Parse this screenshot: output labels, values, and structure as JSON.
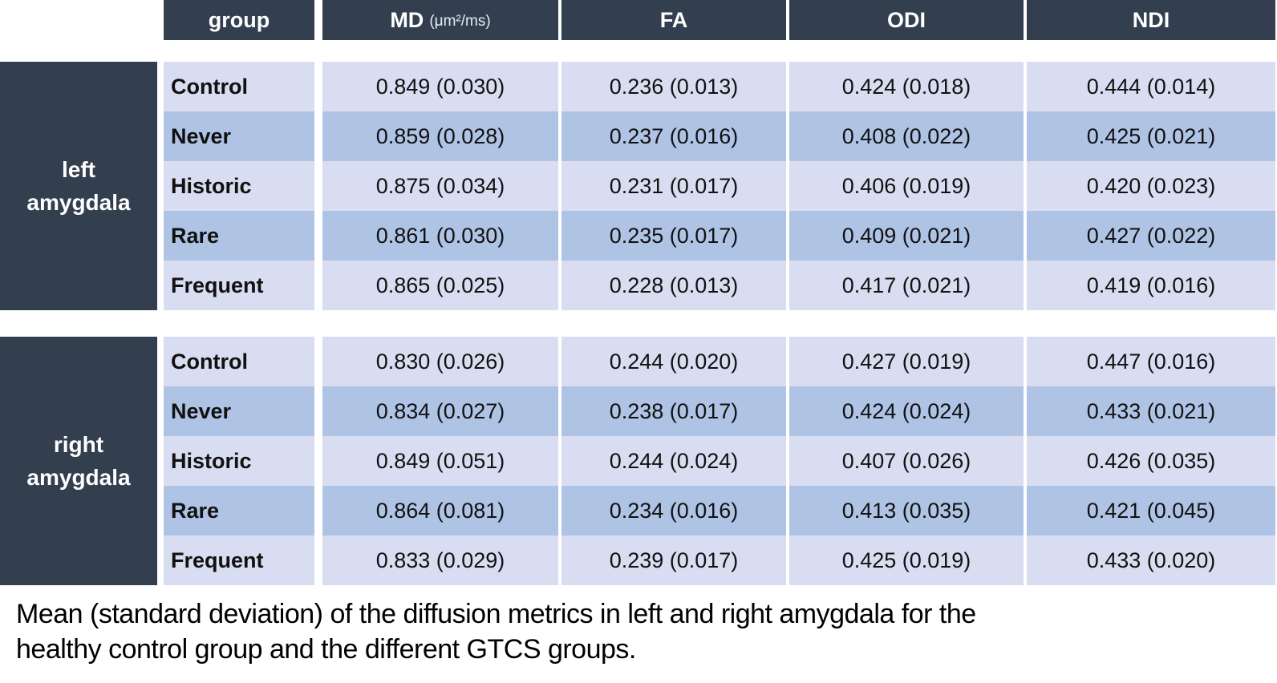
{
  "table": {
    "header": {
      "group": "group",
      "md": "MD",
      "md_unit": "(μm²/ms)",
      "fa": "FA",
      "odi": "ODI",
      "ndi": "NDI"
    },
    "sections": [
      {
        "label": "left\namygdala",
        "rows": [
          {
            "group": "Control",
            "md": "0.849 (0.030)",
            "fa": "0.236 (0.013)",
            "odi": "0.424 (0.018)",
            "ndi": "0.444 (0.014)"
          },
          {
            "group": "Never",
            "md": "0.859 (0.028)",
            "fa": "0.237 (0.016)",
            "odi": "0.408 (0.022)",
            "ndi": "0.425 (0.021)"
          },
          {
            "group": "Historic",
            "md": "0.875 (0.034)",
            "fa": "0.231 (0.017)",
            "odi": "0.406 (0.019)",
            "ndi": "0.420 (0.023)"
          },
          {
            "group": "Rare",
            "md": "0.861 (0.030)",
            "fa": "0.235 (0.017)",
            "odi": "0.409 (0.021)",
            "ndi": "0.427 (0.022)"
          },
          {
            "group": "Frequent",
            "md": "0.865 (0.025)",
            "fa": "0.228 (0.013)",
            "odi": "0.417 (0.021)",
            "ndi": "0.419 (0.016)"
          }
        ]
      },
      {
        "label": "right\namygdala",
        "rows": [
          {
            "group": "Control",
            "md": "0.830 (0.026)",
            "fa": "0.244 (0.020)",
            "odi": "0.427 (0.019)",
            "ndi": "0.447 (0.016)"
          },
          {
            "group": "Never",
            "md": "0.834 (0.027)",
            "fa": "0.238 (0.017)",
            "odi": "0.424 (0.024)",
            "ndi": "0.433 (0.021)"
          },
          {
            "group": "Historic",
            "md": "0.849 (0.051)",
            "fa": "0.244 (0.024)",
            "odi": "0.407 (0.026)",
            "ndi": "0.426 (0.035)"
          },
          {
            "group": "Rare",
            "md": "0.864 (0.081)",
            "fa": "0.234 (0.016)",
            "odi": "0.413 (0.035)",
            "ndi": "0.421 (0.045)"
          },
          {
            "group": "Frequent",
            "md": "0.833 (0.029)",
            "fa": "0.239 (0.017)",
            "odi": "0.425 (0.019)",
            "ndi": "0.433 (0.020)"
          }
        ]
      }
    ]
  },
  "caption": "Mean (standard deviation) of the diffusion metrics in left and right amygdala for the\nhealthy control group and the different GTCS groups.",
  "colors": {
    "header_bg": "#333F4F",
    "row_light": "#D9DDF1",
    "row_alt": "#AFC3E5",
    "header_text": "#FFFFFF",
    "body_text": "#111111"
  }
}
